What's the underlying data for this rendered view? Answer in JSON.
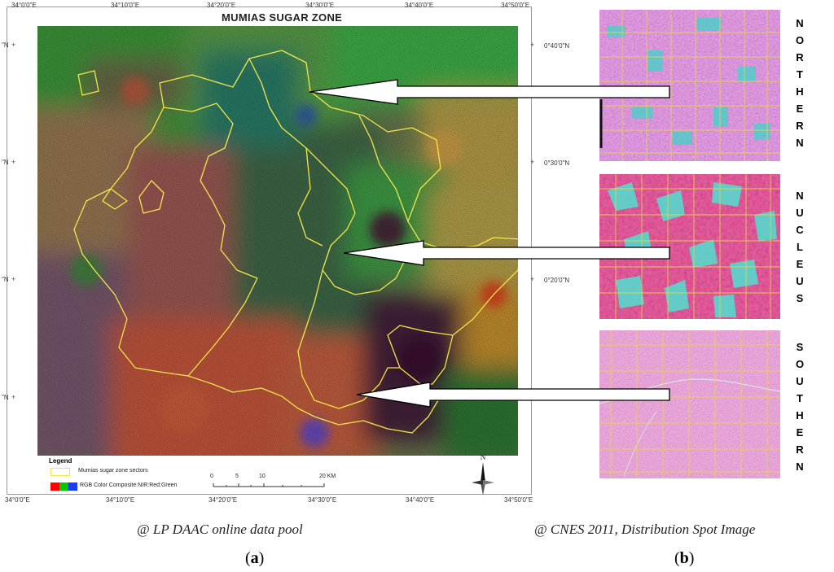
{
  "map_title": "MUMIAS SUGAR ZONE",
  "longitude_labels_top": [
    "34°0'0\"E",
    "34°10'0\"E",
    "34°20'0\"E",
    "34°30'0\"E",
    "34°40'0\"E",
    "34°50'0\"E"
  ],
  "longitude_labels_bottom": [
    "34°0'0\"E",
    "34°10'0\"E",
    "34°20'0\"E",
    "34°30'0\"E",
    "34°40'0\"E",
    "34°50'0\"E"
  ],
  "latitude_labels_right": [
    "0°40'0\"N",
    "0°30'0\"N",
    "0°20'0\"N"
  ],
  "latitude_labels_left": [
    "\"N",
    "\"N",
    "\"N",
    "\"N"
  ],
  "legend": {
    "title": "Legend",
    "zone_label": "Mumias sugar zone sectors",
    "zone_color": "#f2e64a",
    "rgb_label": "RGB Color Composite:NIR:Red:Green",
    "rgb_colors": [
      "#ff0000",
      "#00c800",
      "#1a3cff"
    ]
  },
  "scale": {
    "ticks": [
      "0",
      "5",
      "10",
      "20 KM"
    ]
  },
  "north_label": "N",
  "sectors": [
    {
      "name": "NORTHERN",
      "letters": [
        "N",
        "O",
        "R",
        "T",
        "H",
        "E",
        "R",
        "N"
      ]
    },
    {
      "name": "NUCLEUS",
      "letters": [
        "N",
        "U",
        "C",
        "L",
        "E",
        "U",
        "S"
      ]
    },
    {
      "name": "SOUTHERN",
      "letters": [
        "S",
        "O",
        "U",
        "T",
        "H",
        "E",
        "R",
        "N"
      ]
    }
  ],
  "caption_a": "@ LP DAAC online data pool",
  "caption_b": "@ CNES 2011, Distribution Spot Image",
  "panel_a_label": "a",
  "panel_b_label": "b"
}
